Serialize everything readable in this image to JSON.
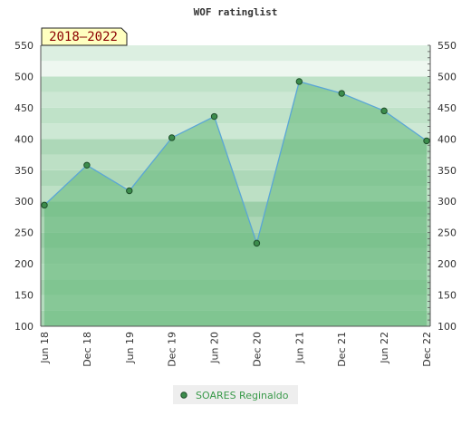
{
  "chart_data": {
    "type": "area",
    "title": "WOF ratinglist",
    "period_label": "2018–2022",
    "x_ticks": [
      "Jun 18",
      "Dec 18",
      "Jun 19",
      "Dec 19",
      "Jun 20",
      "Dec 20",
      "Jun 21",
      "Dec 21",
      "Jun 22",
      "Dec 22"
    ],
    "y_ticks": [
      100,
      150,
      200,
      250,
      300,
      350,
      400,
      450,
      500,
      550
    ],
    "ylim": [
      100,
      550
    ],
    "series": [
      {
        "name": "SOARES Reginaldo",
        "x": [
          "Jun 18",
          "Dec 18",
          "Jun 19",
          "Dec 19",
          "Jun 20",
          "Dec 20",
          "Jun 21",
          "Dec 21",
          "Jun 22",
          "Dec 22"
        ],
        "values": [
          294,
          358,
          317,
          402,
          436,
          233,
          492,
          473,
          445,
          397
        ]
      }
    ],
    "legend_position": "bottom-center",
    "colors": {
      "line": "#5aa6d6",
      "fill": "#63b878",
      "marker": "#3c8c4c",
      "badge_bg": "#ffffc0"
    }
  }
}
